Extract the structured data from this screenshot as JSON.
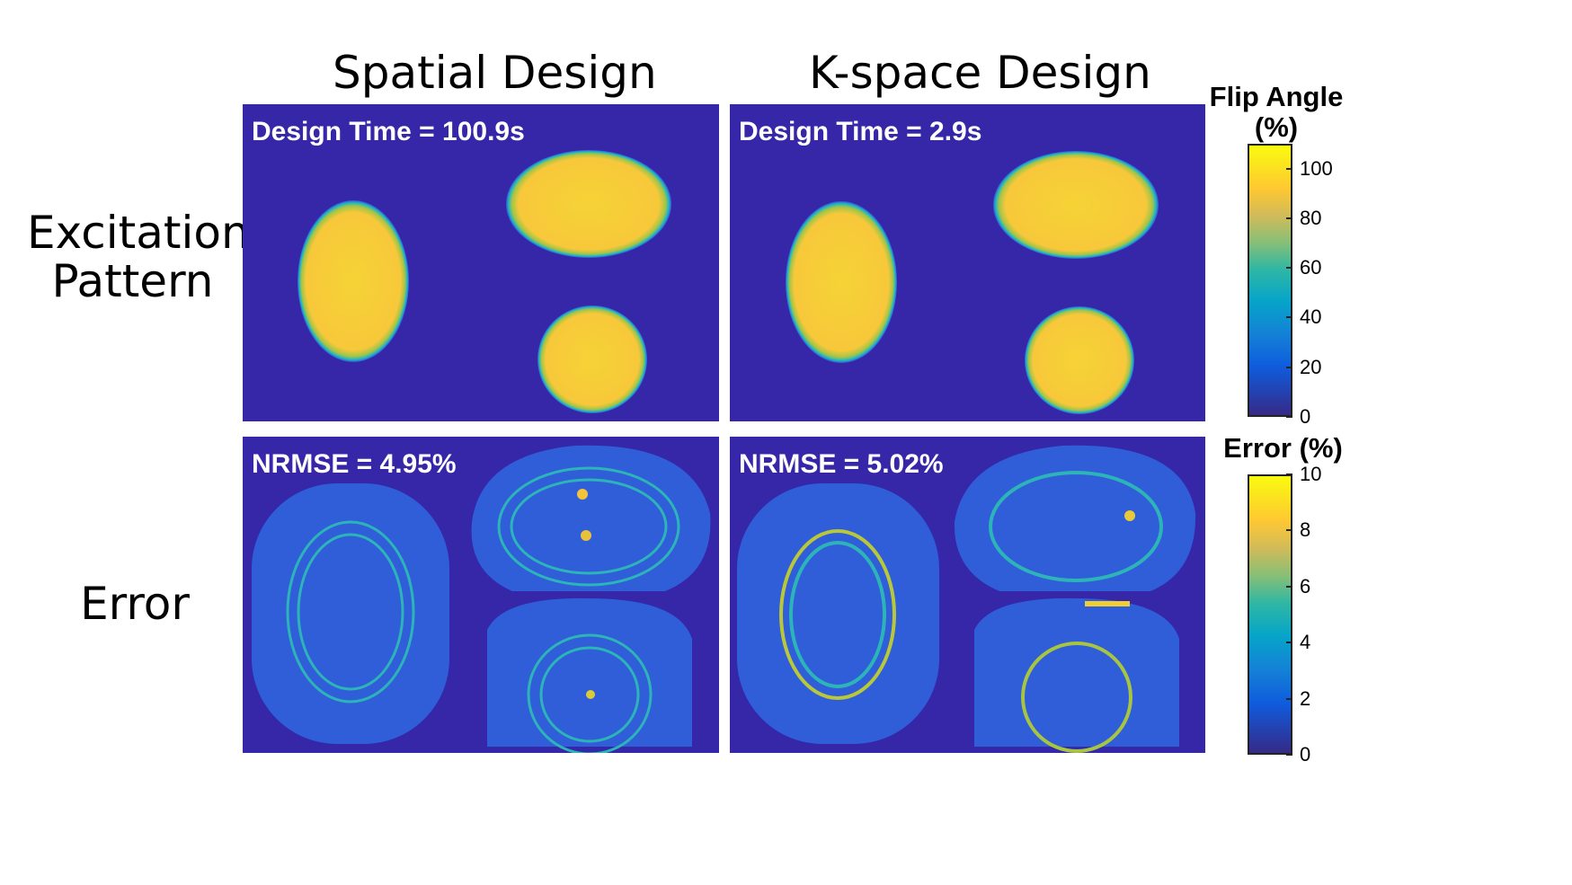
{
  "columns": {
    "spatial": "Spatial Design",
    "kspace": "K-space Design"
  },
  "rows": {
    "excitation": [
      "Excitation",
      "Pattern"
    ],
    "error": "Error"
  },
  "panels": {
    "spatial_excitation": "Design Time = 100.9s",
    "kspace_excitation": "Design Time = 2.9s",
    "spatial_error": "NRMSE = 4.95%",
    "kspace_error": "NRMSE = 5.02%"
  },
  "colorbars": {
    "flip": {
      "title": [
        "Flip Angle",
        "(%)"
      ],
      "ticks": [
        "100",
        "80",
        "60",
        "40",
        "20",
        "0"
      ],
      "range": [
        0,
        110
      ]
    },
    "error": {
      "title": "Error (%)",
      "ticks": [
        "10",
        "8",
        "6",
        "4",
        "2",
        "0"
      ],
      "range": [
        0,
        10
      ]
    }
  },
  "colors": {
    "background": "#3527a8",
    "high": "#f9d62e",
    "edge": "#18b9c8",
    "ring": "#2c9ad8"
  }
}
